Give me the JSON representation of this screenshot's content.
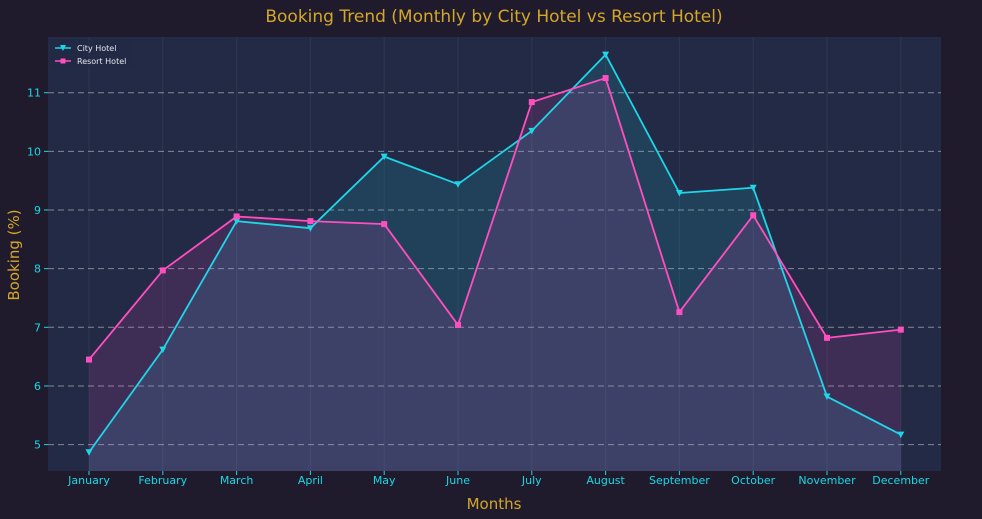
{
  "colors": {
    "background": "#1f1b2c",
    "plot_background": "#222a45",
    "title": "#d4a62a",
    "tick": "#19d8e6",
    "grid": "#c8c8d0",
    "city": "#1fd6e8",
    "resort": "#ff4fbf"
  },
  "chart_data": {
    "type": "line",
    "title": "Booking Trend (Monthly by City Hotel vs Resort Hotel)",
    "xlabel": "Months",
    "ylabel": "Booking (%)",
    "categories": [
      "January",
      "February",
      "March",
      "April",
      "May",
      "June",
      "July",
      "August",
      "September",
      "October",
      "November",
      "December"
    ],
    "ylim": [
      4.55,
      11.95
    ],
    "yticks": [
      5,
      6,
      7,
      8,
      9,
      10,
      11
    ],
    "grid": "horizontal dashed",
    "legend_position": "top-left",
    "series": [
      {
        "name": "City Hotel",
        "marker": "triangle-down",
        "fill": "area",
        "values": [
          4.87,
          6.62,
          8.81,
          8.69,
          9.91,
          9.44,
          10.35,
          11.65,
          9.29,
          9.38,
          5.82,
          5.17
        ]
      },
      {
        "name": "Resort Hotel",
        "marker": "square",
        "fill": "area",
        "values": [
          6.45,
          7.97,
          8.89,
          8.81,
          8.76,
          7.04,
          10.84,
          11.25,
          7.26,
          8.91,
          6.82,
          6.96
        ]
      }
    ]
  }
}
